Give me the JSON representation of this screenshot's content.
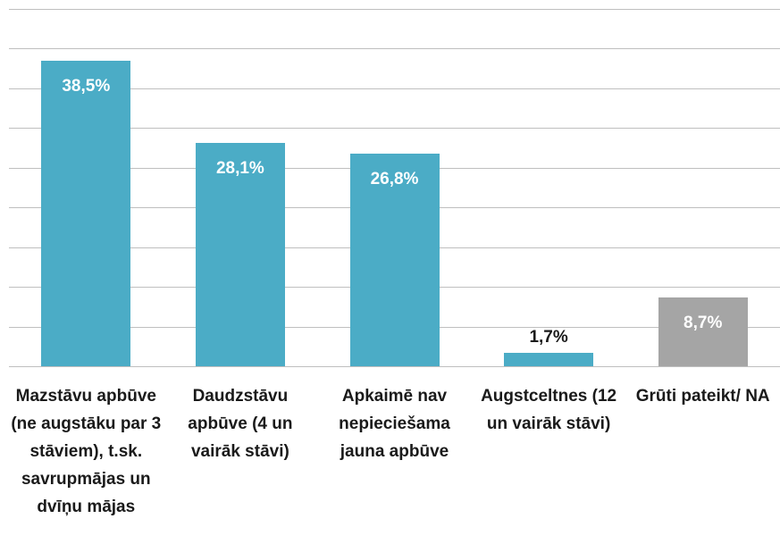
{
  "chart_data": {
    "type": "bar",
    "categories": [
      "Mazstāvu apbūve (ne augstāku par 3 stāviem), t.sk. savrupmājas un dvīņu mājas",
      "Daudzstāvu apbūve (4 un vairāk stāvi)",
      "Apkaimē nav nepieciešama jauna apbūve",
      "Augstceltnes (12 un vairāk stāvi)",
      "Grūti pateikt/ NA"
    ],
    "values": [
      38.5,
      28.1,
      26.8,
      1.7,
      8.7
    ],
    "value_labels": [
      "38,5%",
      "28,1%",
      "26,8%",
      "1,7%",
      "8,7%"
    ],
    "colors": [
      "#4bacc6",
      "#4bacc6",
      "#4bacc6",
      "#4bacc6",
      "#a5a5a5"
    ],
    "ylim": [
      0,
      45
    ],
    "yticks": [
      0,
      5,
      10,
      15,
      20,
      25,
      30,
      35,
      40,
      45
    ],
    "grid": true
  }
}
